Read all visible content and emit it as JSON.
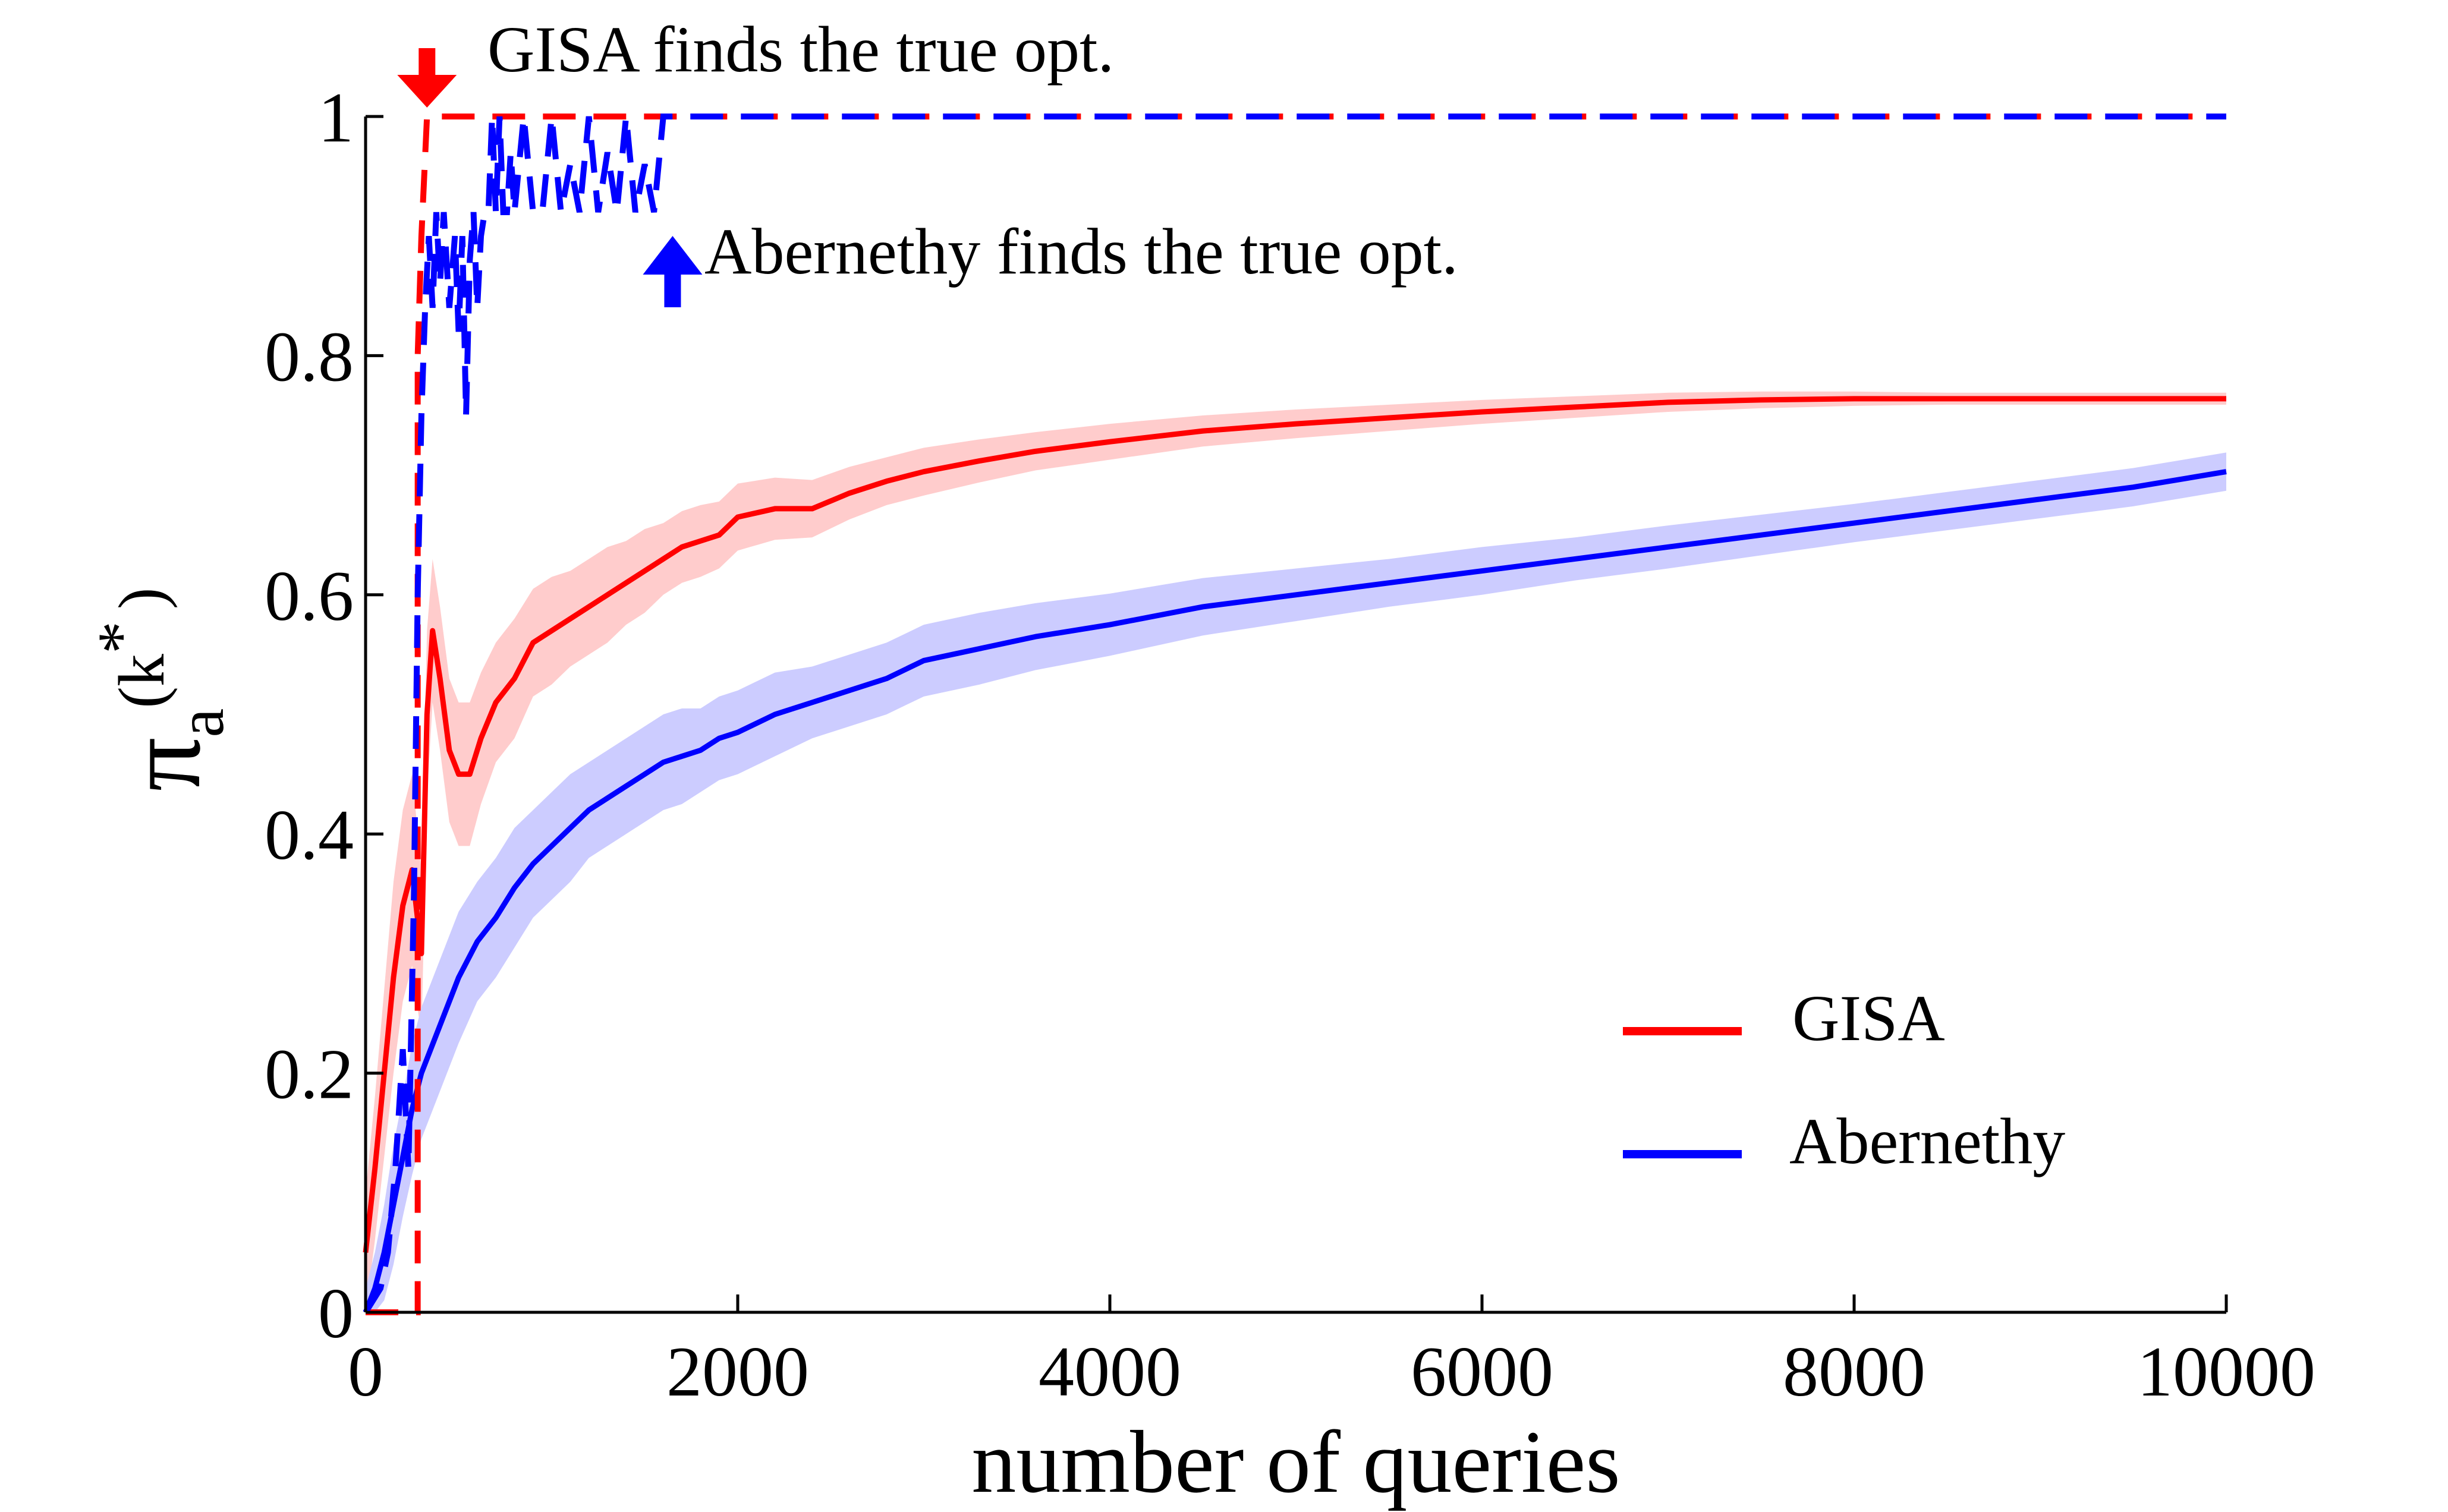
{
  "chart_data": {
    "type": "line",
    "title": "",
    "xlabel": "number of queries",
    "ylabel": {
      "symbol": "π",
      "subscript": "a",
      "superscript": "(k",
      "superscript_close": ")",
      "star": "*"
    },
    "xlim": [
      0,
      10000
    ],
    "ylim": [
      0,
      1
    ],
    "xticks": [
      0,
      2000,
      4000,
      6000,
      8000,
      10000
    ],
    "xtick_labels": [
      "0",
      "2000",
      "4000",
      "6000",
      "8000",
      "10000"
    ],
    "yticks": [
      0,
      0.2,
      0.4,
      0.6,
      0.8,
      1
    ],
    "ytick_labels": [
      "0",
      "0.2",
      "0.4",
      "0.6",
      "0.8",
      "1"
    ],
    "grid": false,
    "legend_position": "bottom-right",
    "series": [
      {
        "name": "GISA",
        "color": "#ff0000",
        "band_color": "#ffcccc",
        "x": [
          0,
          50,
          100,
          150,
          200,
          250,
          300,
          330,
          360,
          400,
          450,
          500,
          560,
          620,
          700,
          800,
          900,
          1000,
          1100,
          1200,
          1300,
          1400,
          1500,
          1600,
          1700,
          1800,
          1900,
          2000,
          2200,
          2400,
          2600,
          2800,
          3000,
          3300,
          3600,
          4000,
          4500,
          5000,
          5500,
          6000,
          6500,
          7000,
          7500,
          8000,
          8500,
          9000,
          9500,
          10000
        ],
        "y": [
          0.05,
          0.12,
          0.2,
          0.28,
          0.34,
          0.37,
          0.3,
          0.5,
          0.57,
          0.53,
          0.47,
          0.45,
          0.45,
          0.48,
          0.51,
          0.53,
          0.56,
          0.57,
          0.58,
          0.59,
          0.6,
          0.61,
          0.62,
          0.63,
          0.64,
          0.645,
          0.65,
          0.665,
          0.672,
          0.672,
          0.685,
          0.695,
          0.703,
          0.712,
          0.72,
          0.728,
          0.737,
          0.743,
          0.748,
          0.753,
          0.757,
          0.761,
          0.763,
          0.764,
          0.764,
          0.764,
          0.764,
          0.764
        ],
        "band": [
          0.05,
          0.06,
          0.07,
          0.08,
          0.08,
          0.08,
          0.07,
          0.07,
          0.06,
          0.06,
          0.06,
          0.06,
          0.06,
          0.055,
          0.05,
          0.05,
          0.045,
          0.045,
          0.04,
          0.04,
          0.04,
          0.035,
          0.035,
          0.03,
          0.03,
          0.03,
          0.028,
          0.028,
          0.026,
          0.024,
          0.022,
          0.02,
          0.02,
          0.018,
          0.016,
          0.015,
          0.013,
          0.012,
          0.011,
          0.01,
          0.009,
          0.008,
          0.007,
          0.006,
          0.005,
          0.005,
          0.005,
          0.005
        ]
      },
      {
        "name": "Abernethy",
        "color": "#0000ff",
        "band_color": "#ccccff",
        "x": [
          0,
          50,
          100,
          150,
          200,
          250,
          300,
          350,
          400,
          450,
          500,
          600,
          700,
          800,
          900,
          1000,
          1100,
          1200,
          1300,
          1400,
          1500,
          1600,
          1700,
          1800,
          1900,
          2000,
          2200,
          2400,
          2600,
          2800,
          3000,
          3300,
          3600,
          4000,
          4500,
          5000,
          5500,
          6000,
          6500,
          7000,
          7500,
          8000,
          8500,
          9000,
          9500,
          10000
        ],
        "y": [
          0.0,
          0.02,
          0.05,
          0.09,
          0.13,
          0.17,
          0.2,
          0.22,
          0.24,
          0.26,
          0.28,
          0.31,
          0.33,
          0.355,
          0.375,
          0.39,
          0.405,
          0.42,
          0.43,
          0.44,
          0.45,
          0.46,
          0.465,
          0.47,
          0.48,
          0.485,
          0.5,
          0.51,
          0.52,
          0.53,
          0.545,
          0.555,
          0.565,
          0.575,
          0.59,
          0.6,
          0.61,
          0.62,
          0.63,
          0.64,
          0.65,
          0.66,
          0.67,
          0.68,
          0.69,
          0.703
        ],
        "band": [
          0.02,
          0.03,
          0.04,
          0.05,
          0.05,
          0.055,
          0.055,
          0.055,
          0.055,
          0.055,
          0.055,
          0.05,
          0.05,
          0.05,
          0.045,
          0.045,
          0.045,
          0.04,
          0.04,
          0.04,
          0.04,
          0.04,
          0.04,
          0.035,
          0.035,
          0.035,
          0.035,
          0.03,
          0.03,
          0.03,
          0.03,
          0.03,
          0.028,
          0.026,
          0.024,
          0.022,
          0.02,
          0.02,
          0.018,
          0.018,
          0.017,
          0.016,
          0.016,
          0.016,
          0.016,
          0.016
        ]
      }
    ],
    "best_found": [
      {
        "name": "GISA",
        "color": "#ff0000",
        "x": [
          0,
          280,
          280,
          300,
          330,
          360,
          10000
        ],
        "y": [
          0,
          0,
          0.8,
          0.9,
          1,
          1,
          1
        ]
      },
      {
        "name": "Abernethy",
        "color": "#0000ff",
        "x": [
          0,
          80,
          120,
          160,
          200,
          230,
          260,
          280,
          300,
          320,
          340,
          360,
          380,
          400,
          420,
          450,
          480,
          500,
          520,
          540,
          560,
          580,
          600,
          620,
          640,
          660,
          680,
          700,
          720,
          740,
          760,
          780,
          800,
          850,
          900,
          950,
          1000,
          1050,
          1100,
          1150,
          1200,
          1250,
          1300,
          1350,
          1400,
          1450,
          1500,
          1550,
          1600,
          1650,
          10000
        ],
        "y": [
          0,
          0.02,
          0.05,
          0.12,
          0.22,
          0.12,
          0.35,
          0.6,
          0.75,
          0.84,
          0.9,
          0.84,
          0.92,
          0.86,
          0.92,
          0.84,
          0.9,
          0.82,
          0.9,
          0.75,
          0.88,
          0.92,
          0.84,
          0.9,
          0.92,
          0.92,
          1,
          0.92,
          1,
          0.92,
          0.92,
          0.97,
          0.92,
          1,
          0.92,
          0.92,
          1,
          0.92,
          0.96,
          0.92,
          1,
          0.92,
          0.97,
          0.92,
          1,
          0.92,
          0.96,
          0.92,
          1,
          1,
          1
        ]
      }
    ],
    "annotations": [
      {
        "text": "GISA finds the true opt.",
        "x": 330,
        "y": 1,
        "direction": "down",
        "color": "#ff0000"
      },
      {
        "text": "Abernethy finds the true opt.",
        "x": 1650,
        "y": 0.92,
        "direction": "up",
        "color": "#0000ff"
      }
    ]
  }
}
